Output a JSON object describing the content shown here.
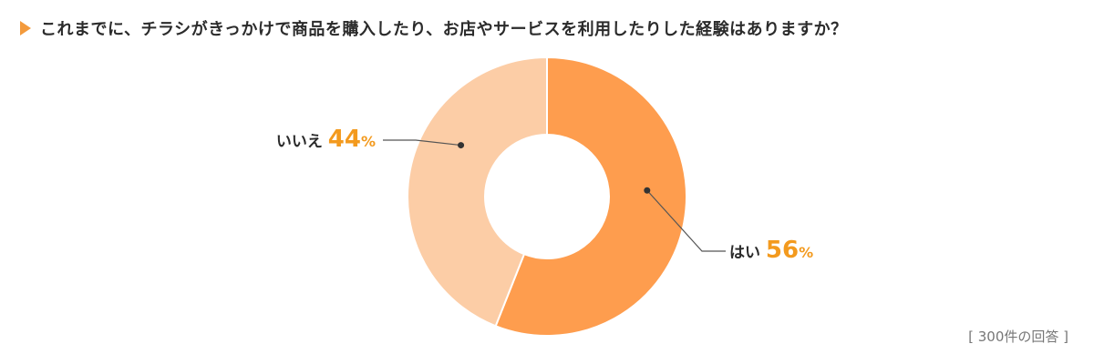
{
  "title": "これまでに、チラシがきっかけで商品を購入したり、お店やサービスを利用したりした経験はありますか？",
  "footnote": "[ 300件の回答 ]",
  "colors": {
    "accent": "#f39a3c",
    "yes_slice": "#fe9d4e",
    "no_slice": "#fccda6",
    "percent_text": "#f39a1e",
    "label_text": "#2b2b2b",
    "leader_line": "#555555"
  },
  "chart_data": {
    "type": "pie",
    "donut": true,
    "categories": [
      "はい",
      "いいえ"
    ],
    "values": [
      56,
      44
    ],
    "unit": "%"
  }
}
